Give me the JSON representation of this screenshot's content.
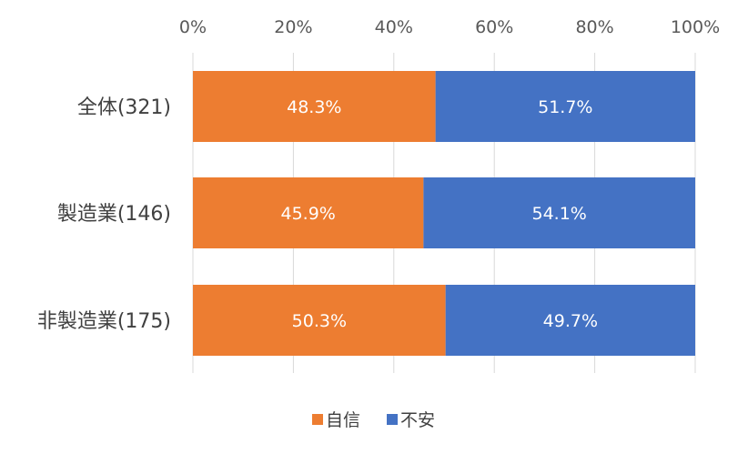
{
  "chart_data": {
    "type": "bar",
    "orientation": "horizontal",
    "stacked": true,
    "categories": [
      "全体(321)",
      "製造業(146)",
      "非製造業(175)"
    ],
    "series": [
      {
        "name": "自信",
        "values": [
          48.3,
          45.9,
          50.3
        ],
        "color": "#ED7D31"
      },
      {
        "name": "不安",
        "values": [
          51.7,
          54.1,
          49.7
        ],
        "color": "#4472C4"
      }
    ],
    "value_labels": [
      [
        "48.3%",
        "45.9%",
        "50.3%"
      ],
      [
        "51.7%",
        "54.1%",
        "49.7%"
      ]
    ],
    "x_ticks": [
      "0%",
      "20%",
      "40%",
      "60%",
      "80%",
      "100%"
    ],
    "xlim": [
      0,
      100
    ],
    "x_axis_position": "top",
    "grid": true,
    "legend": "bottom-center",
    "title": "",
    "xlabel": "",
    "ylabel": ""
  }
}
